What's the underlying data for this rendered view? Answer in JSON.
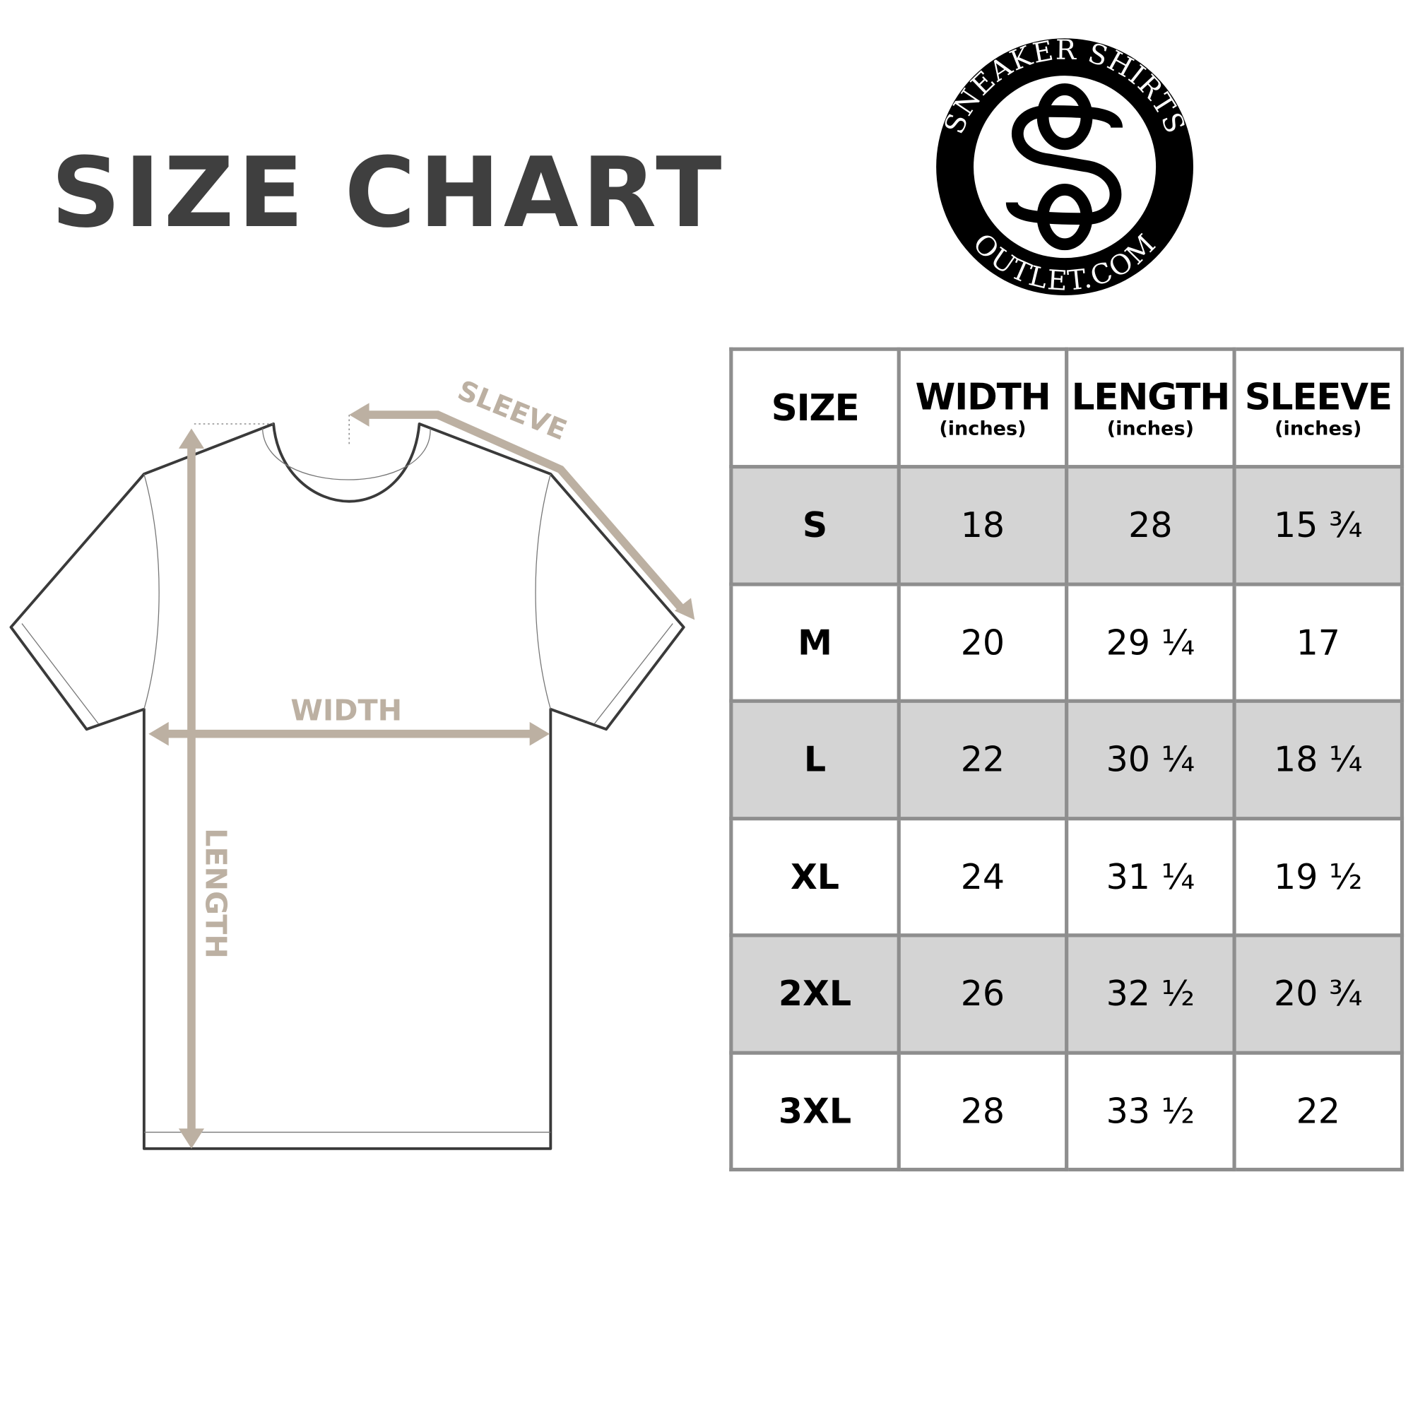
{
  "title": "SIZE CHART",
  "logo": {
    "top_text": "SNEAKER SHIRTS",
    "bottom_text": "OUTLET.COM",
    "monogram": "SO"
  },
  "diagram": {
    "sleeve_label": "SLEEVE",
    "width_label": "WIDTH",
    "length_label": "LENGTH",
    "arrow_color": "#bcb0a2"
  },
  "table": {
    "headers": [
      {
        "label": "SIZE",
        "unit": ""
      },
      {
        "label": "WIDTH",
        "unit": "(inches)"
      },
      {
        "label": "LENGTH",
        "unit": "(inches)"
      },
      {
        "label": "SLEEVE",
        "unit": "(inches)"
      }
    ],
    "rows": [
      [
        "S",
        "18",
        "28",
        "15 ¾"
      ],
      [
        "M",
        "20",
        "29 ¼",
        "17"
      ],
      [
        "L",
        "22",
        "30 ¼",
        "18 ¼"
      ],
      [
        "XL",
        "24",
        "31 ¼",
        "19 ½"
      ],
      [
        "2XL",
        "26",
        "32 ½",
        "20 ¾"
      ],
      [
        "3XL",
        "28",
        "33 ½",
        "22"
      ]
    ],
    "shade_color": "#d4d4d4",
    "border_color": "#8e8e8e"
  }
}
